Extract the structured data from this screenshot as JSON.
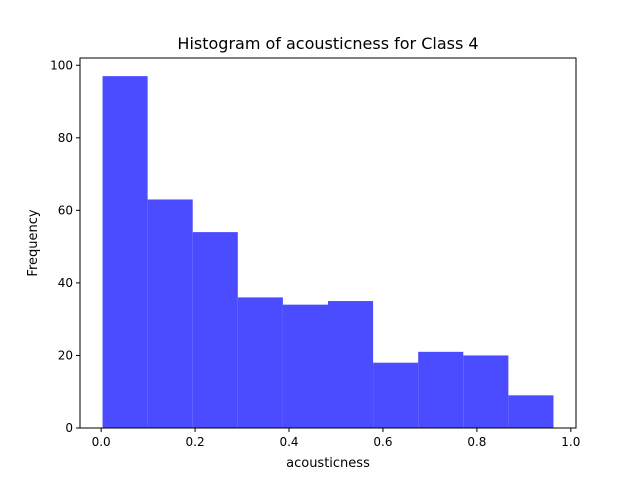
{
  "chart_data": {
    "type": "bar",
    "title": "Histogram of acousticness for Class 4",
    "xlabel": "acousticness",
    "ylabel": "Frequency",
    "bin_edges": [
      0.003,
      0.099,
      0.195,
      0.291,
      0.387,
      0.483,
      0.579,
      0.675,
      0.771,
      0.867,
      0.963
    ],
    "values": [
      97,
      63,
      54,
      36,
      34,
      35,
      18,
      21,
      20,
      9
    ],
    "xlim": [
      -0.045,
      1.011
    ],
    "ylim": [
      0,
      102
    ],
    "xticks": [
      0.0,
      0.2,
      0.4,
      0.6,
      0.8,
      1.0
    ],
    "xtick_labels": [
      "0.0",
      "0.2",
      "0.4",
      "0.6",
      "0.8",
      "1.0"
    ],
    "yticks": [
      0,
      20,
      40,
      60,
      80,
      100
    ],
    "ytick_labels": [
      "0",
      "20",
      "40",
      "60",
      "80",
      "100"
    ],
    "bar_color": "#4b4bff",
    "grid": false,
    "legend": "none"
  }
}
